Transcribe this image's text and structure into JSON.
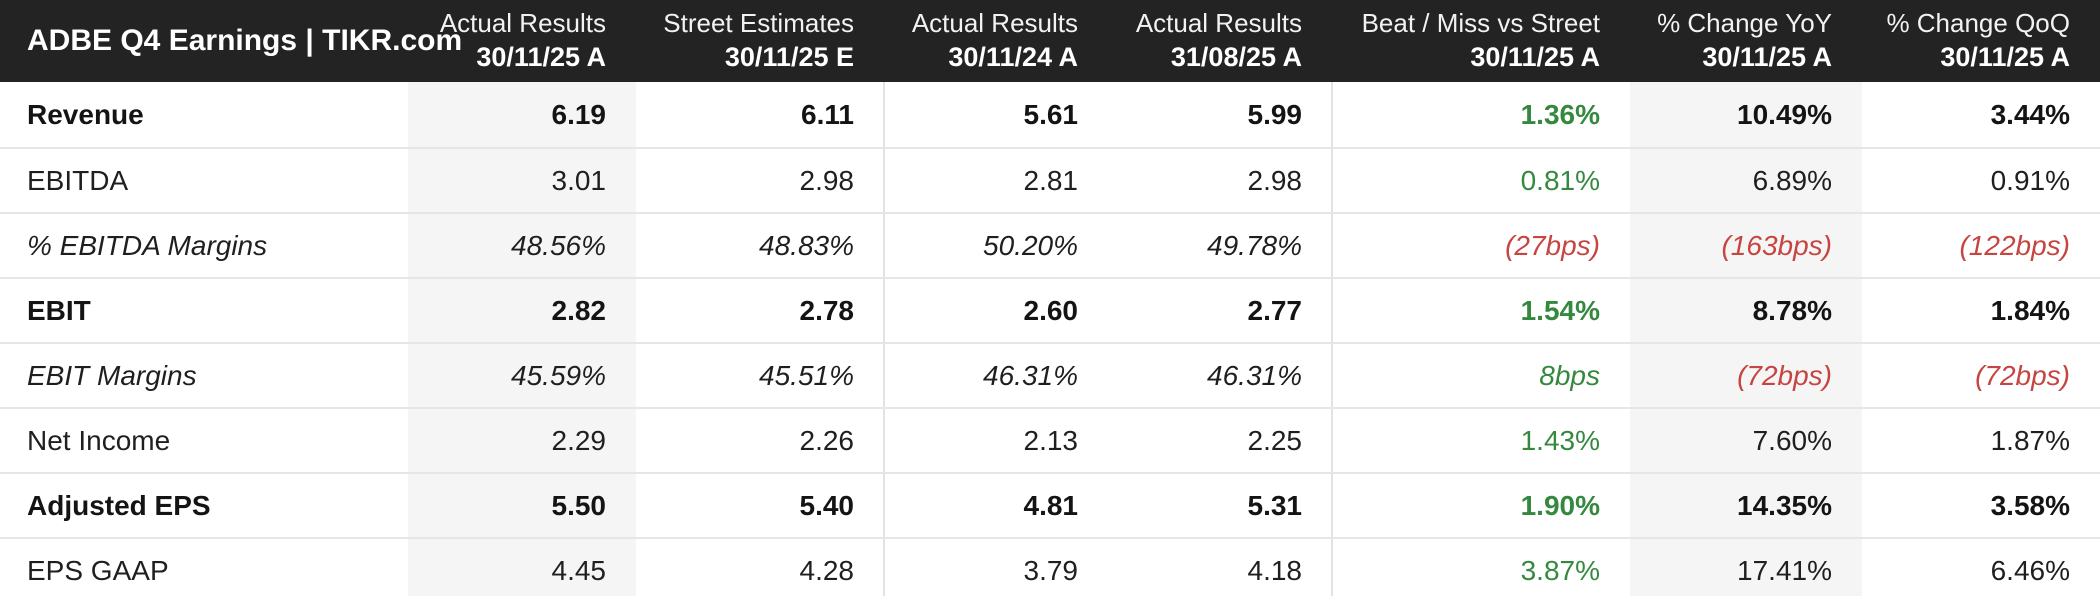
{
  "colors": {
    "positive_green": "#35893f",
    "negative_red": "#c64540",
    "header_background": "#232323",
    "column_stripe": "#f5f5f5",
    "body_text": "#1f1f1f"
  },
  "header": {
    "title": "ADBE Q4 Earnings | TIKR.com",
    "columns": [
      {
        "label": "Actual Results",
        "date": "30/11/25 A"
      },
      {
        "label": "Street Estimates",
        "date": "30/11/25 E"
      },
      {
        "label": "Actual Results",
        "date": "30/11/24 A"
      },
      {
        "label": "Actual Results",
        "date": "31/08/25 A"
      },
      {
        "label": "Beat / Miss vs Street",
        "date": "30/11/25 A"
      },
      {
        "label": "% Change YoY",
        "date": "30/11/25 A"
      },
      {
        "label": "% Change QoQ",
        "date": "30/11/25 A"
      }
    ]
  },
  "rows": [
    {
      "label": "Revenue",
      "cells": [
        "6.19",
        "6.11",
        "5.61",
        "5.99",
        "1.36%",
        "10.49%",
        "3.44%"
      ]
    },
    {
      "label": "EBITDA",
      "cells": [
        "3.01",
        "2.98",
        "2.81",
        "2.98",
        "0.81%",
        "6.89%",
        "0.91%"
      ]
    },
    {
      "label": "% EBITDA Margins",
      "cells": [
        "48.56%",
        "48.83%",
        "50.20%",
        "49.78%",
        "(27bps)",
        "(163bps)",
        "(122bps)"
      ]
    },
    {
      "label": "EBIT",
      "cells": [
        "2.82",
        "2.78",
        "2.60",
        "2.77",
        "1.54%",
        "8.78%",
        "1.84%"
      ]
    },
    {
      "label": "EBIT Margins",
      "cells": [
        "45.59%",
        "45.51%",
        "46.31%",
        "46.31%",
        "8bps",
        "(72bps)",
        "(72bps)"
      ]
    },
    {
      "label": "Net Income",
      "cells": [
        "2.29",
        "2.26",
        "2.13",
        "2.25",
        "1.43%",
        "7.60%",
        "1.87%"
      ]
    },
    {
      "label": "Adjusted EPS",
      "cells": [
        "5.50",
        "5.40",
        "4.81",
        "5.31",
        "1.90%",
        "14.35%",
        "3.58%"
      ]
    },
    {
      "label": "EPS GAAP",
      "cells": [
        "4.45",
        "4.28",
        "3.79",
        "4.18",
        "3.87%",
        "17.41%",
        "6.46%"
      ]
    }
  ]
}
